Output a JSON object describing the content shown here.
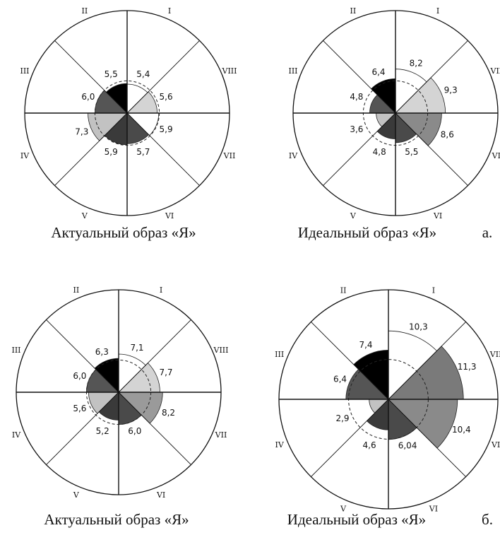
{
  "row_labels": [
    "а.",
    "б."
  ],
  "chart_data": [
    {
      "type": "polar-area",
      "caption": "Актуальный образ «Я»",
      "sectors": [
        "I",
        "II",
        "III",
        "IV",
        "V",
        "VI",
        "VII",
        "VIII"
      ],
      "values": [
        5.4,
        5.5,
        6.0,
        7.3,
        5.9,
        5.7,
        5.9,
        5.6
      ],
      "value_labels": [
        "5,4",
        "5,5",
        "6,0",
        "7,3",
        "5,9",
        "5,7",
        "5,9",
        "5,6"
      ],
      "fills": [
        "#ffffff",
        "#000000",
        "#555555",
        "#c2c2c2",
        "#3a3a3a",
        "#4a4a4a",
        "#ffffff",
        "#d4d4d4"
      ],
      "reference_circle": true
    },
    {
      "type": "polar-area",
      "caption": "Идеальный образ «Я»",
      "sectors": [
        "I",
        "II",
        "III",
        "IV",
        "V",
        "VI",
        "VII",
        "VIII"
      ],
      "values": [
        8.2,
        6.4,
        4.8,
        3.6,
        4.8,
        5.5,
        8.6,
        9.3
      ],
      "value_labels": [
        "8,2",
        "6,4",
        "4,8",
        "3,6",
        "4,8",
        "5,5",
        "8,6",
        "9,3"
      ],
      "fills": [
        "#ffffff",
        "#000000",
        "#555555",
        "#c2c2c2",
        "#3a3a3a",
        "#4a4a4a",
        "#8a8a8a",
        "#d4d4d4"
      ],
      "reference_circle": true
    },
    {
      "type": "polar-area",
      "caption": "Актуальный образ «Я»",
      "sectors": [
        "I",
        "II",
        "III",
        "IV",
        "V",
        "VI",
        "VII",
        "VIII"
      ],
      "values": [
        7.1,
        6.3,
        6.0,
        5.6,
        5.2,
        6.0,
        8.2,
        7.7
      ],
      "value_labels": [
        "7,1",
        "6,3",
        "6,0",
        "5,6",
        "5,2",
        "6,0",
        "8,2",
        "7,7"
      ],
      "fills": [
        "#ffffff",
        "#000000",
        "#555555",
        "#c2c2c2",
        "#3a3a3a",
        "#4a4a4a",
        "#9a9a9a",
        "#d4d4d4"
      ],
      "reference_circle": true
    },
    {
      "type": "polar-area",
      "caption": "Идеальный образ «Я»",
      "sectors": [
        "I",
        "II",
        "III",
        "IV",
        "V",
        "VI",
        "VII",
        "VIII"
      ],
      "values": [
        10.3,
        7.4,
        6.4,
        2.9,
        4.6,
        6.04,
        10.4,
        11.3
      ],
      "value_labels": [
        "10,3",
        "7,4",
        "6,4",
        "2,9",
        "4,6",
        "6,04",
        "10,4",
        "11,3"
      ],
      "fills": [
        "#ffffff",
        "#000000",
        "#555555",
        "#c2c2c2",
        "#3a3a3a",
        "#4a4a4a",
        "#8a8a8a",
        "#7a7a7a"
      ],
      "reference_circle": true
    }
  ]
}
